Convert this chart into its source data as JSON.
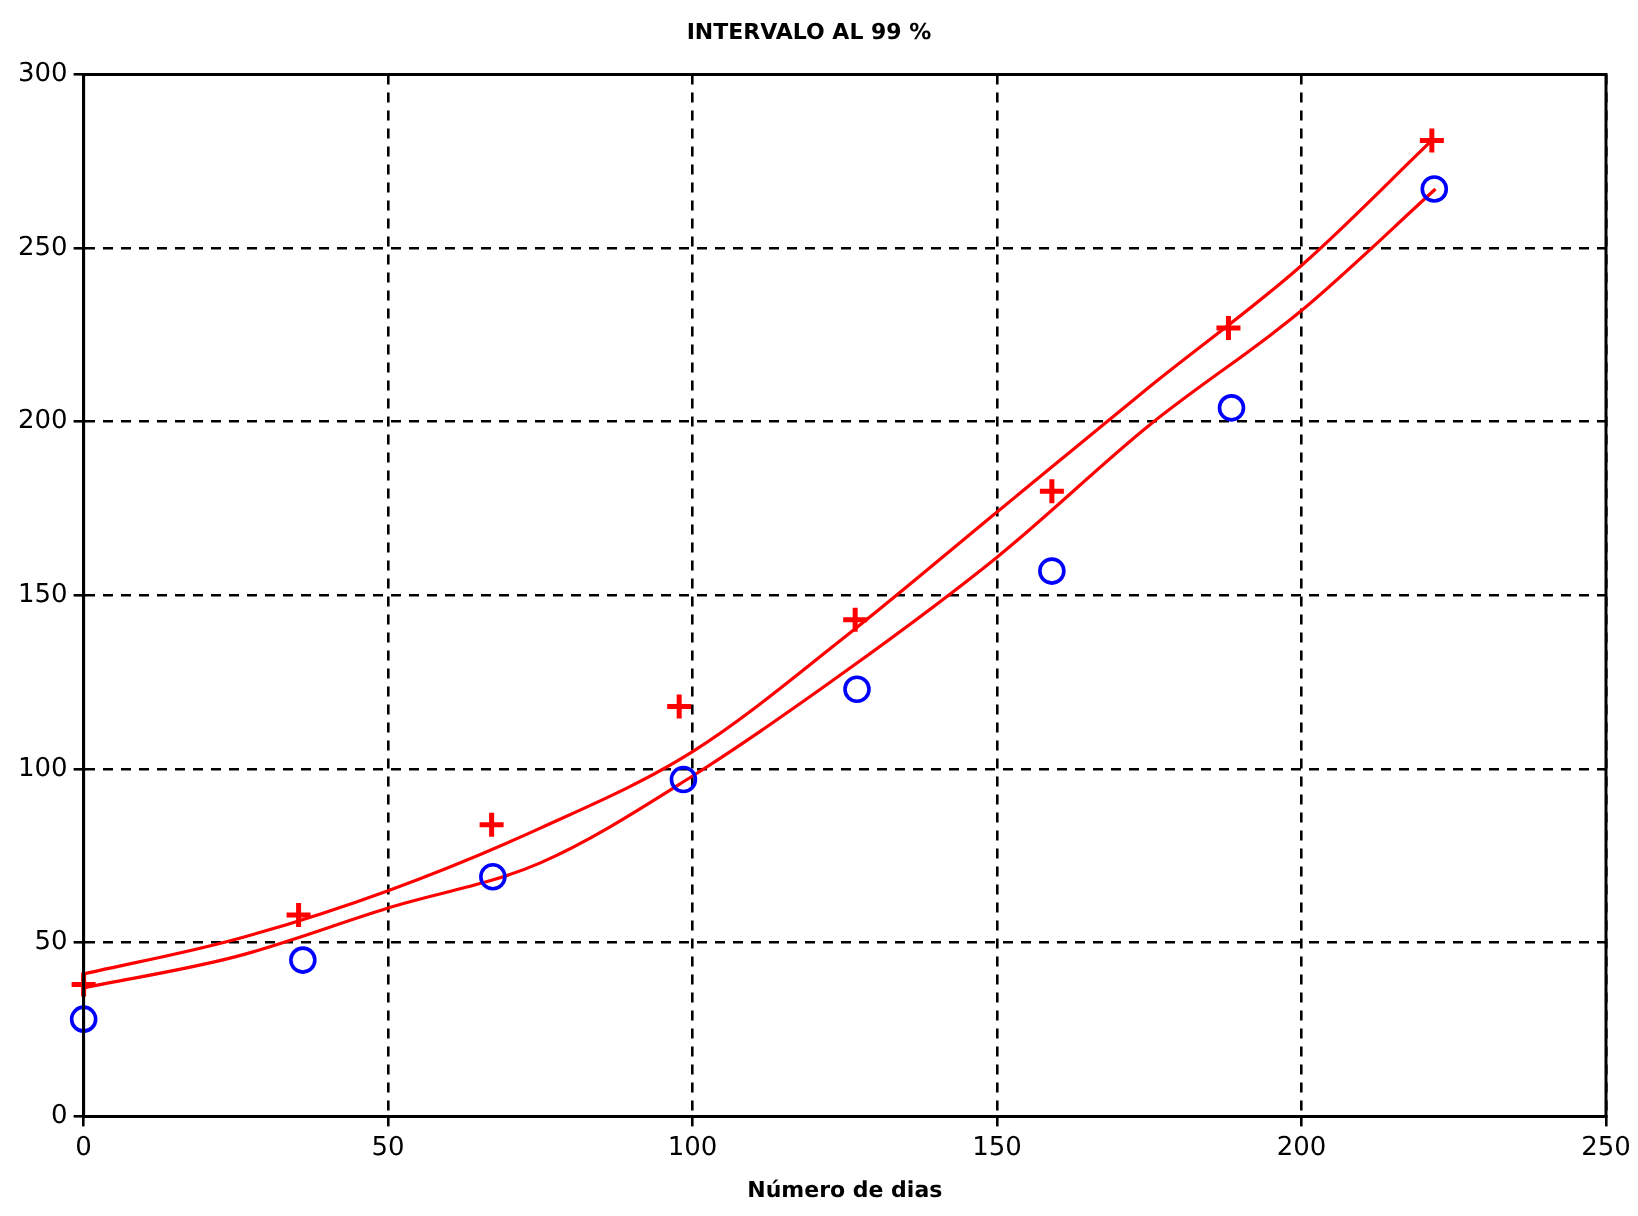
{
  "chart_data": {
    "type": "scatter",
    "title": "INTERVALO AL 99 %",
    "xlabel": "Número de dias",
    "xlim": [
      0,
      250
    ],
    "xticks": [
      0,
      50,
      100,
      150,
      200,
      250
    ],
    "ylim": [
      0,
      300
    ],
    "yticks": [
      0,
      50,
      100,
      150,
      200,
      250,
      300
    ],
    "grid": true,
    "legend": false,
    "series": [
      {
        "color": "#0000ff",
        "marker": "circle",
        "x": [
          0,
          36,
          67.2,
          98.5,
          127,
          159,
          188.5,
          221.8
        ],
        "values": [
          28,
          45,
          69,
          97,
          123,
          157,
          204,
          267
        ]
      },
      {
        "color": "#ff0000",
        "marker": "cross",
        "x": [
          0,
          35.3,
          67,
          97.8,
          126.7,
          159,
          188,
          221.4
        ],
        "values": [
          38,
          58,
          84,
          118,
          143,
          180,
          227,
          281
        ]
      },
      {
        "type": "line",
        "color": "#ff0000",
        "marker": "none",
        "line_style": "solid",
        "x": [
          0,
          25,
          50,
          75,
          100,
          125,
          150,
          175,
          200,
          221.4
        ],
        "values": [
          41,
          51,
          65,
          83,
          105,
          138,
          174,
          210,
          245,
          281
        ]
      },
      {
        "type": "line",
        "color": "#ff0000",
        "marker": "none",
        "line_style": "solid",
        "x": [
          0,
          25,
          50,
          75,
          100,
          125,
          150,
          175,
          200,
          222
        ],
        "values": [
          37,
          46,
          60,
          73,
          98,
          128,
          161,
          199,
          232,
          267
        ]
      }
    ]
  }
}
